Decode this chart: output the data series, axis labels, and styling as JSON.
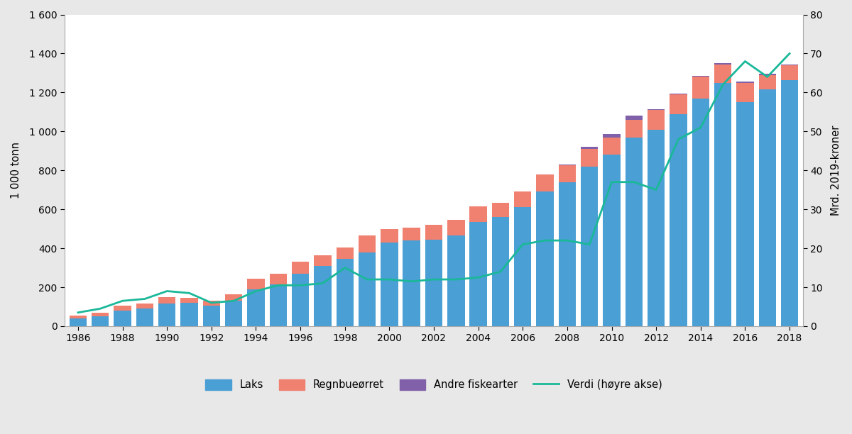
{
  "years": [
    1986,
    1987,
    1988,
    1989,
    1990,
    1991,
    1992,
    1993,
    1994,
    1995,
    1996,
    1997,
    1998,
    1999,
    2000,
    2001,
    2002,
    2003,
    2004,
    2005,
    2006,
    2007,
    2008,
    2009,
    2010,
    2011,
    2012,
    2013,
    2014,
    2015,
    2016,
    2017,
    2018
  ],
  "laks": [
    40,
    50,
    80,
    90,
    115,
    120,
    105,
    130,
    190,
    215,
    270,
    310,
    345,
    380,
    430,
    440,
    445,
    465,
    535,
    560,
    610,
    690,
    740,
    820,
    880,
    970,
    1010,
    1090,
    1170,
    1250,
    1150,
    1215,
    1265
  ],
  "regnbueorret": [
    15,
    20,
    25,
    25,
    35,
    25,
    25,
    35,
    55,
    55,
    60,
    55,
    60,
    85,
    70,
    65,
    75,
    80,
    80,
    75,
    80,
    90,
    85,
    90,
    90,
    90,
    100,
    100,
    110,
    95,
    100,
    75,
    75
  ],
  "andre": [
    0,
    0,
    0,
    0,
    0,
    0,
    0,
    0,
    0,
    0,
    0,
    0,
    0,
    0,
    0,
    0,
    0,
    0,
    0,
    0,
    0,
    0,
    5,
    10,
    15,
    20,
    5,
    5,
    5,
    5,
    5,
    5,
    5
  ],
  "verdi": [
    3.5,
    4.5,
    6.5,
    7,
    9,
    8.5,
    6,
    6.5,
    9,
    10.5,
    10.5,
    11,
    15,
    12,
    12,
    11.5,
    12,
    12,
    12.5,
    14,
    21,
    22,
    22,
    21,
    37,
    37,
    35,
    48,
    51,
    62,
    68,
    64,
    70
  ],
  "laks_color": "#4a9fd4",
  "regnbueorret_color": "#f08070",
  "andre_color": "#8060a8",
  "verdi_color": "#1ab899",
  "fig_bg_color": "#e8e8e8",
  "plot_bg_color": "#ffffff",
  "ylabel_left": "1 000 tonn",
  "ylabel_right": "Mrd. 2019-kroner",
  "ylim_left": [
    0,
    1600
  ],
  "ylim_right": [
    0,
    80
  ],
  "yticks_left": [
    0,
    200,
    400,
    600,
    800,
    1000,
    1200,
    1400,
    1600
  ],
  "yticks_right": [
    0,
    10,
    20,
    30,
    40,
    50,
    60,
    70,
    80
  ],
  "legend_labels": [
    "Laks",
    "Regnbueørret",
    "Andre fiskearter",
    "Verdi (høyre akse)"
  ]
}
